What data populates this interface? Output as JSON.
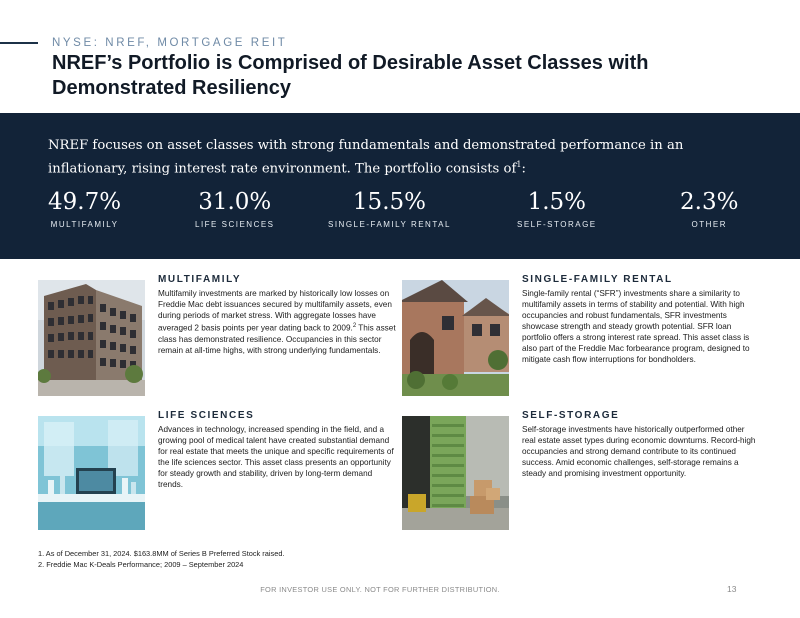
{
  "header": {
    "kicker": "NYSE: NREF, MORTGAGE REIT",
    "title": "NREF’s Portfolio is Comprised of Desirable Asset Classes with Demonstrated Resiliency"
  },
  "band": {
    "intro": "NREF focuses on asset classes with strong fundamentals and demonstrated performance in an inflationary, rising interest rate environment. The portfolio consists of",
    "intro_sup": "1",
    "intro_end": ":",
    "stats": [
      {
        "value": "49.7%",
        "label": "MULTIFAMILY"
      },
      {
        "value": "31.0%",
        "label": "LIFE SCIENCES"
      },
      {
        "value": "15.5%",
        "label": "SINGLE-FAMILY RENTAL"
      },
      {
        "value": "1.5%",
        "label": "SELF-STORAGE"
      },
      {
        "value": "2.3%",
        "label": "OTHER"
      }
    ]
  },
  "cards": {
    "multifamily": {
      "heading": "MULTIFAMILY",
      "body": "Multifamily investments are marked by historically low losses on Freddie Mac debt issuances secured by multifamily assets, even during periods of market stress. With aggregate losses have averaged 2 basis points per year dating back to 2009.",
      "sup": "2",
      "body_end": " This asset class has demonstrated resilience. Occupancies in this sector remain at all-time highs, with strong underlying fundamentals."
    },
    "single_family": {
      "heading": "SINGLE-FAMILY RENTAL",
      "body": "Single-family rental (“SFR”) investments share a similarity to multifamily assets in terms of stability and potential. With high occupancies and robust fundamentals, SFR investments showcase strength and steady growth potential. SFR loan portfolio offers a strong interest rate spread. This asset class is also part of the Freddie Mac forbearance program, designed to mitigate cash flow interruptions for bondholders."
    },
    "life_sciences": {
      "heading": "LIFE SCIENCES",
      "body": "Advances in technology, increased spending in the field, and a growing pool of medical talent have created substantial demand for real estate that meets the unique and specific requirements of the life sciences sector. This asset class presents an opportunity for steady growth and stability, driven by long-term demand trends."
    },
    "self_storage": {
      "heading": "SELF-STORAGE",
      "body": "Self-storage investments have historically outperformed other real estate asset types during economic downturns. Record-high occupancies and strong demand contribute to its continued success. Amid economic challenges, self-storage remains a steady and promising investment opportunity."
    }
  },
  "footnotes": [
    "1. As of December 31, 2024. $163.8MM of Series B Preferred Stock raised.",
    "2. Freddie Mac K-Deals Performance; 2009 – September 2024"
  ],
  "footer": {
    "disclaimer": "FOR INVESTOR USE ONLY. NOT FOR FURTHER DISTRIBUTION.",
    "page_number": "13"
  },
  "colors": {
    "band_background": "#122338",
    "title": "#111a26",
    "kicker": "#6f8aa6"
  }
}
